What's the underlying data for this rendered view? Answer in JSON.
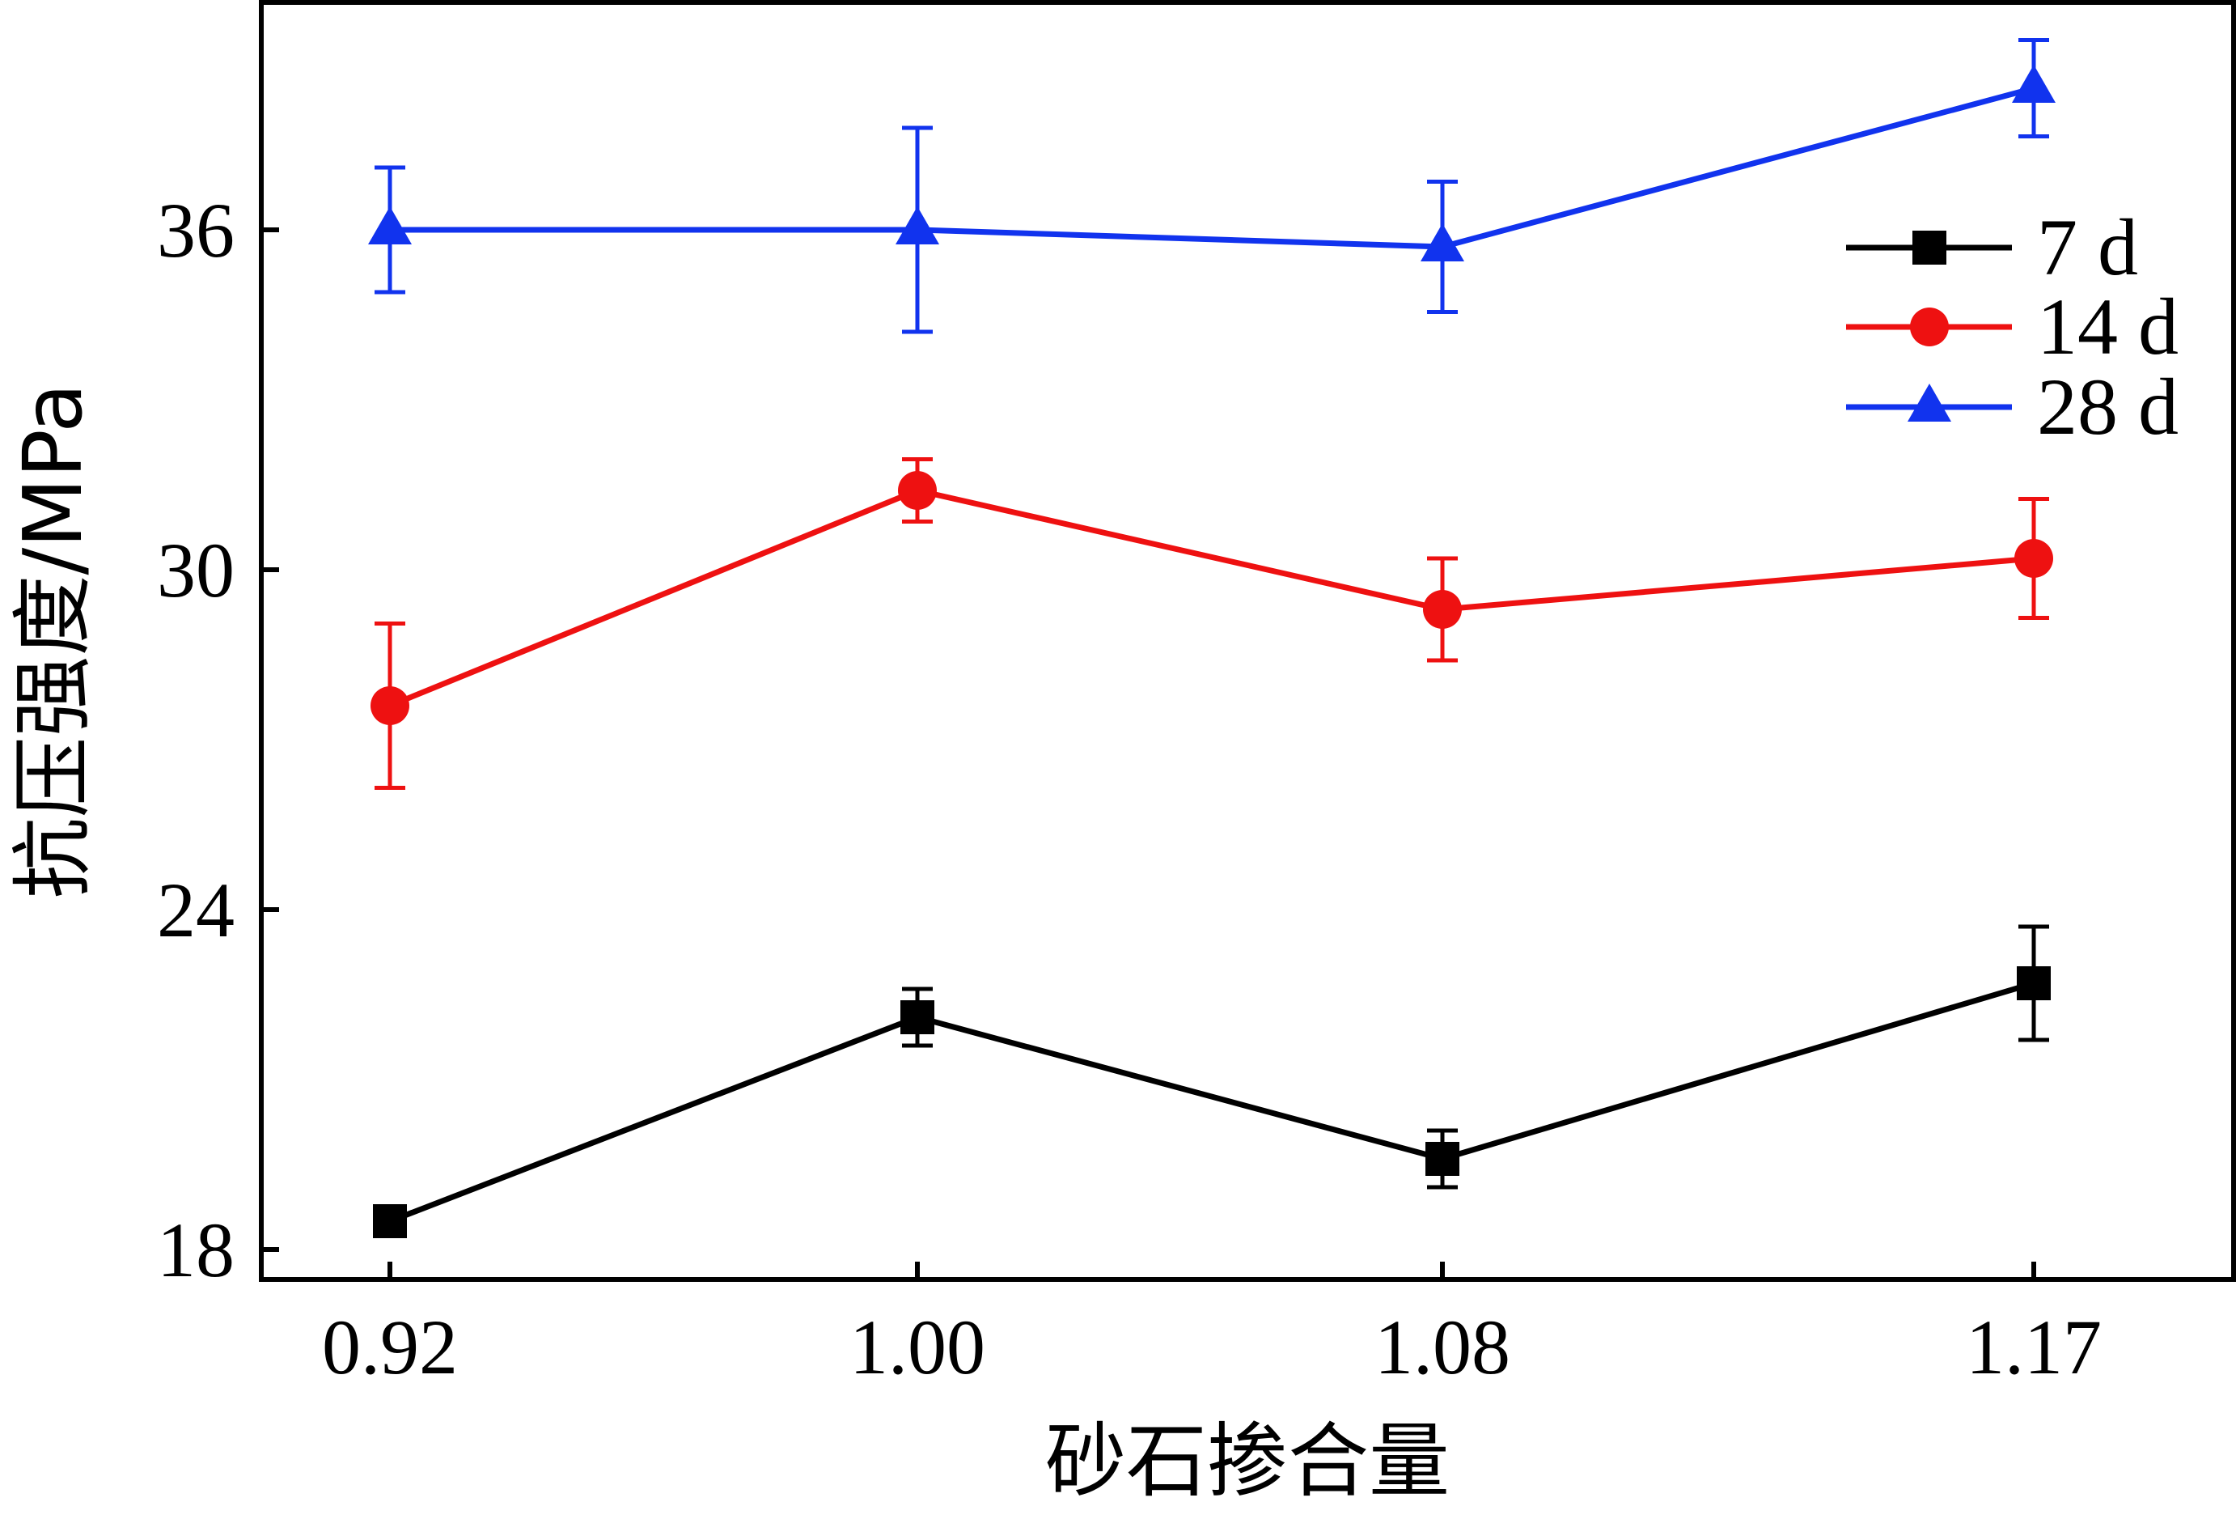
{
  "chart_data": {
    "type": "line",
    "title": "",
    "xlabel": "砂石掺合量",
    "ylabel": "抗压强度/MPa",
    "categories": [
      "0.92",
      "1.00",
      "1.08",
      "1.17"
    ],
    "ylim": [
      17.8,
      40.0
    ],
    "yticks": [
      18,
      24,
      30,
      36
    ],
    "xtick_labels": [
      "0.92",
      "1.00",
      "1.08",
      "1.17"
    ],
    "ytick_labels": [
      "18",
      "24",
      "30",
      "36"
    ],
    "grid": false,
    "legend_position": "top-right",
    "series": [
      {
        "name": "7 d",
        "color": "#000000",
        "marker": "square",
        "values": [
          18.5,
          22.1,
          19.6,
          22.7
        ],
        "errors": [
          0.0,
          0.5,
          0.5,
          1.0
        ]
      },
      {
        "name": "14 d",
        "color": "#ee1111",
        "marker": "circle",
        "values": [
          27.6,
          31.4,
          29.3,
          30.2
        ],
        "errors": [
          1.45,
          0.55,
          0.9,
          1.05
        ]
      },
      {
        "name": "28 d",
        "color": "#1133ee",
        "marker": "triangle",
        "values": [
          36.0,
          36.0,
          35.7,
          38.5
        ],
        "errors": [
          1.1,
          1.8,
          1.15,
          0.85
        ]
      }
    ]
  }
}
